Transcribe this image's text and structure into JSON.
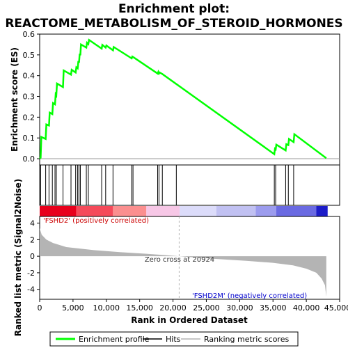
{
  "chart_data": {
    "type": "line",
    "title_line1": "Enrichment plot:",
    "title_line2": "REACTOME_METABOLISM_OF_STEROID_HORMONES",
    "xlabel": "Rank in Ordered Dataset",
    "ylabel_top": "Enrichment score (ES)",
    "ylabel_bottom": "Ranked list metric (Signal2Noise)",
    "xlim": [
      0,
      45000
    ],
    "x_ticks": [
      0,
      5000,
      10000,
      15000,
      20000,
      25000,
      30000,
      35000,
      40000,
      45000
    ],
    "x_tick_labels": [
      "0",
      "5,000",
      "10,000",
      "15,000",
      "20,000",
      "25,000",
      "30,000",
      "35,000",
      "40,000",
      "45,000"
    ],
    "es_ylim": [
      -0.03,
      0.6
    ],
    "es_ticks": [
      0.0,
      0.1,
      0.2,
      0.3,
      0.4,
      0.5,
      0.6
    ],
    "es_tick_labels": [
      "0.0",
      "0.1",
      "0.2",
      "0.3",
      "0.4",
      "0.5",
      "0.6"
    ],
    "metric_ylim": [
      -5.2,
      4.8
    ],
    "metric_ticks": [
      -4,
      -2,
      0,
      2,
      4
    ],
    "metric_tick_labels": [
      "-4",
      "-2",
      "0",
      "2",
      "4"
    ],
    "enrichment_profile": {
      "name": "Enrichment profile",
      "color": "#00ff00",
      "points": [
        [
          0,
          0.0
        ],
        [
          150,
          0.005
        ],
        [
          250,
          0.105
        ],
        [
          900,
          0.095
        ],
        [
          1000,
          0.165
        ],
        [
          1400,
          0.16
        ],
        [
          1500,
          0.222
        ],
        [
          1900,
          0.215
        ],
        [
          2000,
          0.268
        ],
        [
          2300,
          0.262
        ],
        [
          2400,
          0.31
        ],
        [
          2500,
          0.305
        ],
        [
          2600,
          0.362
        ],
        [
          3500,
          0.345
        ],
        [
          3600,
          0.425
        ],
        [
          4700,
          0.405
        ],
        [
          4800,
          0.428
        ],
        [
          5400,
          0.415
        ],
        [
          5500,
          0.44
        ],
        [
          5700,
          0.435
        ],
        [
          5800,
          0.47
        ],
        [
          5900,
          0.462
        ],
        [
          6000,
          0.505
        ],
        [
          6100,
          0.498
        ],
        [
          6200,
          0.55
        ],
        [
          7000,
          0.535
        ],
        [
          7100,
          0.558
        ],
        [
          7300,
          0.552
        ],
        [
          7400,
          0.572
        ],
        [
          9300,
          0.53
        ],
        [
          9400,
          0.548
        ],
        [
          9900,
          0.535
        ],
        [
          10000,
          0.545
        ],
        [
          11000,
          0.522
        ],
        [
          11100,
          0.538
        ],
        [
          13800,
          0.483
        ],
        [
          13900,
          0.492
        ],
        [
          14000,
          0.49
        ],
        [
          17700,
          0.41
        ],
        [
          17800,
          0.418
        ],
        [
          17900,
          0.41
        ],
        [
          18000,
          0.415
        ],
        [
          18400,
          0.408
        ],
        [
          35200,
          0.022
        ],
        [
          35300,
          0.048
        ],
        [
          35400,
          0.045
        ],
        [
          35500,
          0.068
        ],
        [
          36900,
          0.04
        ],
        [
          37000,
          0.07
        ],
        [
          37300,
          0.066
        ],
        [
          37400,
          0.095
        ],
        [
          38100,
          0.08
        ],
        [
          38200,
          0.118
        ],
        [
          43000,
          0.003
        ]
      ]
    },
    "hits": {
      "name": "Hits",
      "x": [
        150,
        900,
        1400,
        1900,
        2300,
        2500,
        3500,
        4700,
        5400,
        5700,
        5900,
        6100,
        7000,
        7300,
        9300,
        9900,
        11000,
        13800,
        14000,
        17700,
        17900,
        18400,
        20500,
        35200,
        35400,
        36900,
        37300,
        38100
      ]
    },
    "ranking_metric": {
      "name": "Ranking metric scores",
      "color": "#b4b4b4",
      "points": [
        [
          0,
          3.4
        ],
        [
          300,
          2.6
        ],
        [
          1000,
          2.0
        ],
        [
          2000,
          1.6
        ],
        [
          4000,
          1.1
        ],
        [
          8000,
          0.75
        ],
        [
          12000,
          0.5
        ],
        [
          16000,
          0.3
        ],
        [
          20924,
          0.0
        ],
        [
          26000,
          -0.3
        ],
        [
          31000,
          -0.55
        ],
        [
          35000,
          -0.8
        ],
        [
          38000,
          -1.1
        ],
        [
          40000,
          -1.5
        ],
        [
          41500,
          -2.0
        ],
        [
          42300,
          -2.7
        ],
        [
          42800,
          -3.5
        ],
        [
          43000,
          -4.9
        ]
      ]
    },
    "zero_cross_x": 20924,
    "annotations": {
      "zero_cross": "Zero cross at 20924",
      "positive": "'FSHD2' (positively correlated)",
      "negative": "'FSHD2M' (negatively correlated)"
    },
    "colorbar_segments": [
      {
        "x0": 0,
        "x1": 5500,
        "color": "#e8001c"
      },
      {
        "x0": 5500,
        "x1": 11000,
        "color": "#f54a5a"
      },
      {
        "x0": 11000,
        "x1": 16000,
        "color": "#fb8f8f"
      },
      {
        "x0": 16000,
        "x1": 21000,
        "color": "#f7c7e6"
      },
      {
        "x0": 21000,
        "x1": 26500,
        "color": "#dcdcfa"
      },
      {
        "x0": 26500,
        "x1": 32400,
        "color": "#c1c1f2"
      },
      {
        "x0": 32400,
        "x1": 35500,
        "color": "#9c9cee"
      },
      {
        "x0": 35500,
        "x1": 41500,
        "color": "#6a6ae2"
      },
      {
        "x0": 41500,
        "x1": 43200,
        "color": "#1c1cc8"
      }
    ],
    "legend": [
      {
        "label": "Enrichment profile",
        "color": "#00ff00",
        "kind": "thick"
      },
      {
        "label": "Hits",
        "color": "#000000",
        "kind": "thin"
      },
      {
        "label": "Ranking metric scores",
        "color": "#b4b4b4",
        "kind": "thin"
      }
    ],
    "legend_placement": "bottom"
  }
}
